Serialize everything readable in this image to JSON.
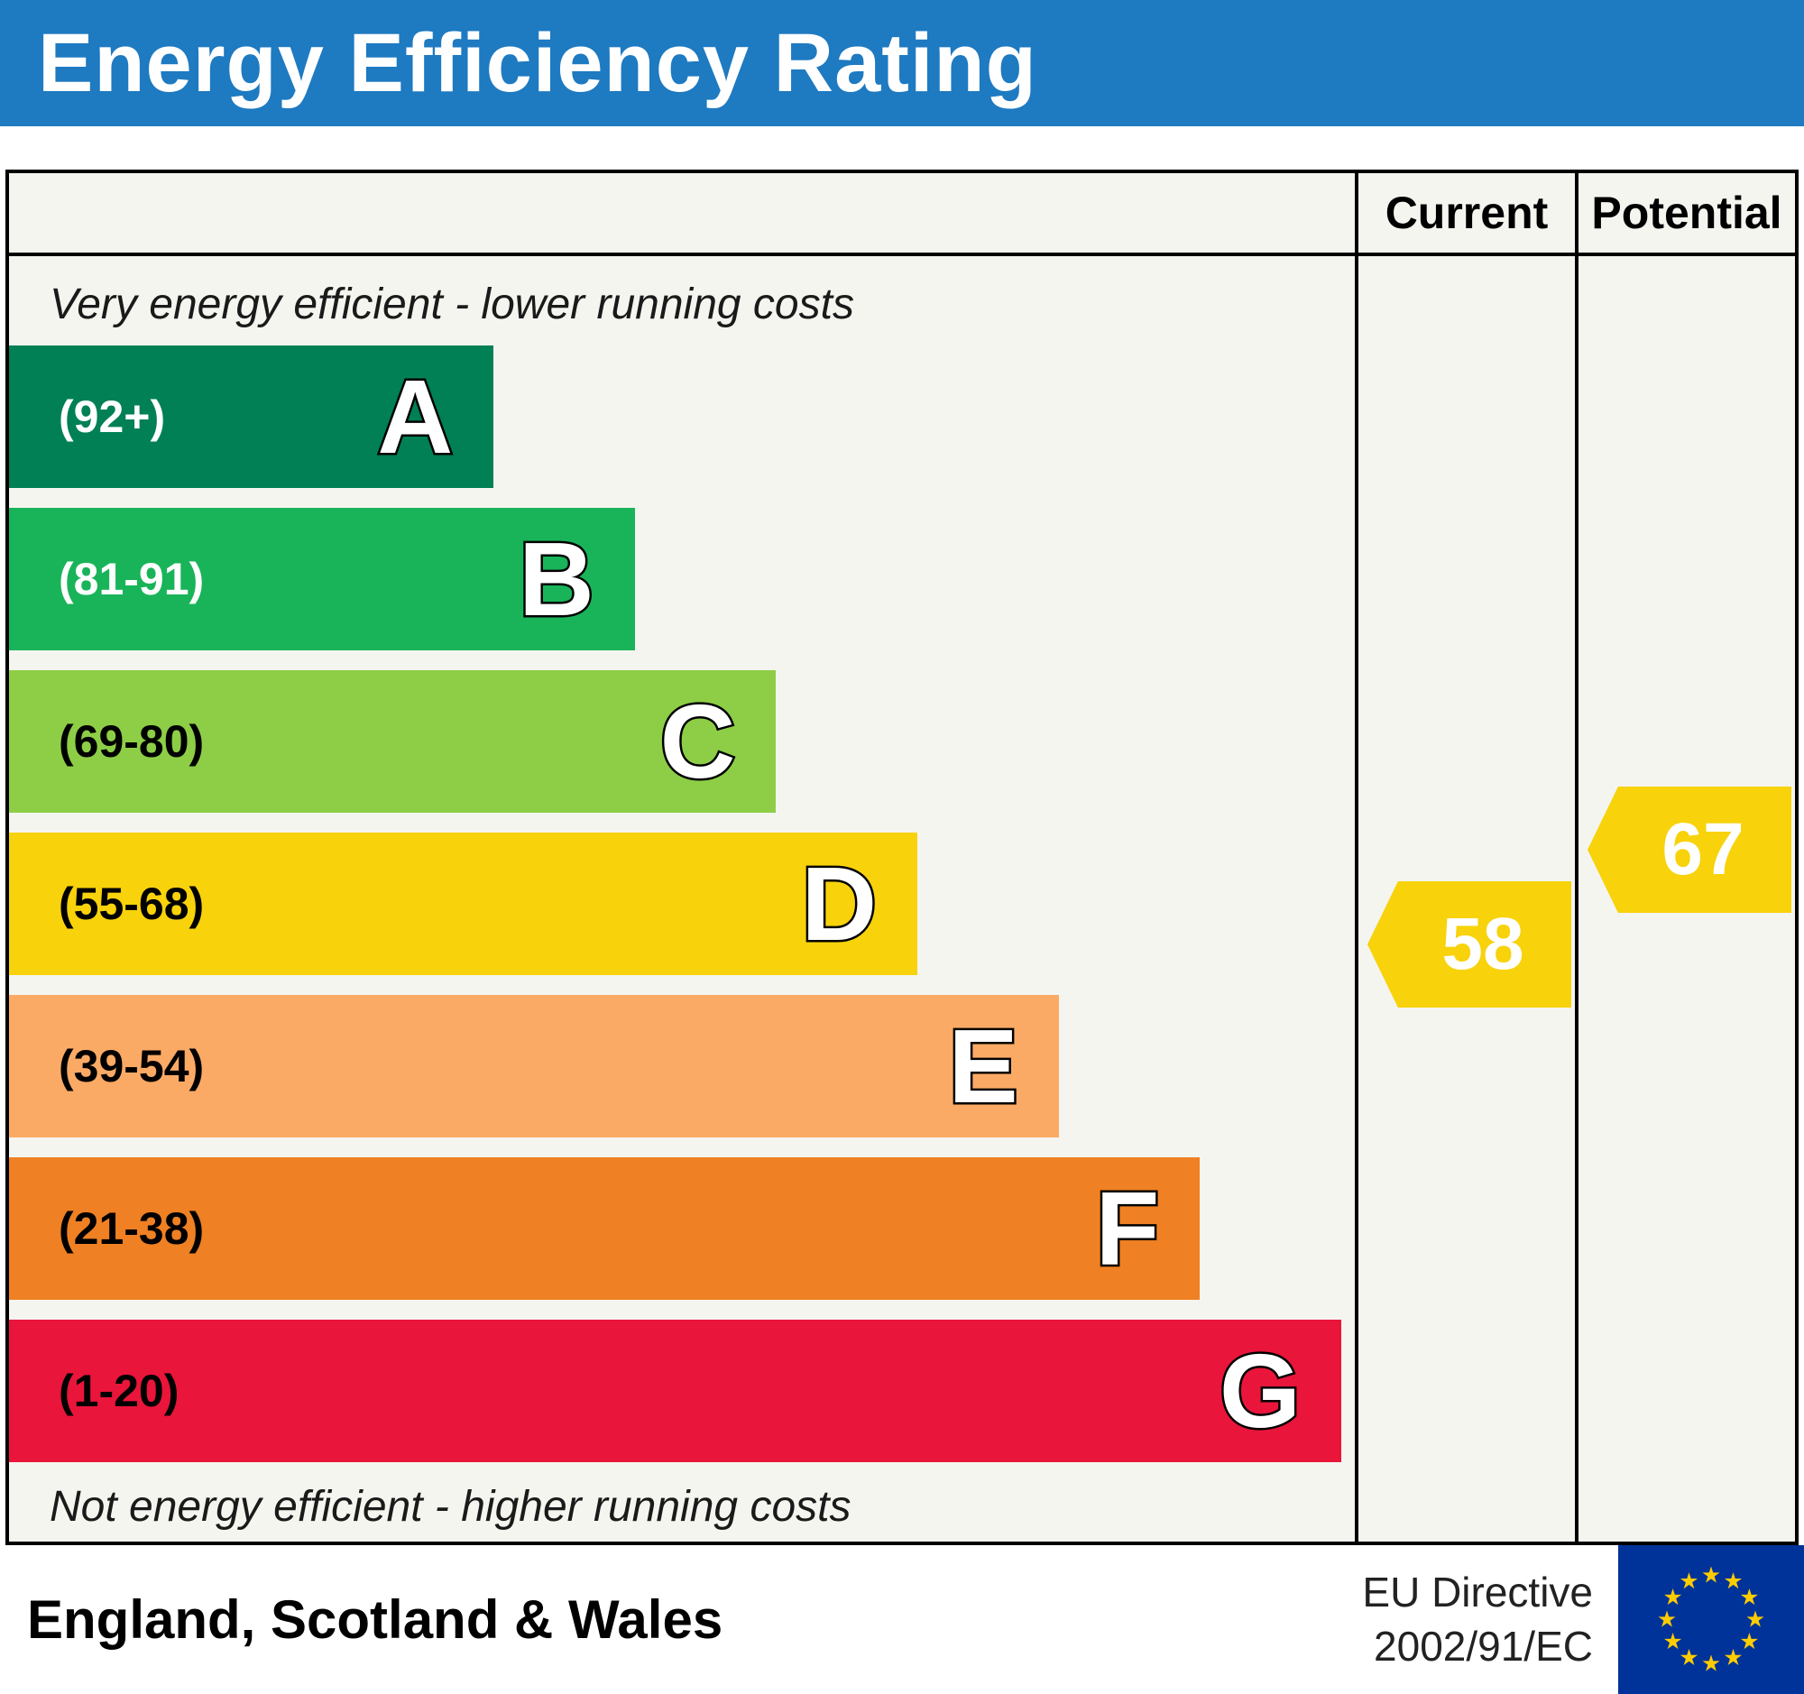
{
  "title": "Energy Efficiency Rating",
  "table": {
    "current_header": "Current",
    "potential_header": "Potential"
  },
  "notes": {
    "top": "Very energy efficient - lower running costs",
    "bottom": "Not energy efficient - higher running costs"
  },
  "bands": [
    {
      "letter": "A",
      "range": "(92+)",
      "color": "#008054",
      "range_color": "#ffffff",
      "width_pct": 36
    },
    {
      "letter": "B",
      "range": "(81-91)",
      "color": "#19b459",
      "range_color": "#ffffff",
      "width_pct": 46.5
    },
    {
      "letter": "C",
      "range": "(69-80)",
      "color": "#8dce46",
      "range_color": "#000000",
      "width_pct": 57
    },
    {
      "letter": "D",
      "range": "(55-68)",
      "color": "#f8d20b",
      "range_color": "#000000",
      "width_pct": 67.5
    },
    {
      "letter": "E",
      "range": "(39-54)",
      "color": "#fbaa65",
      "range_color": "#000000",
      "width_pct": 78
    },
    {
      "letter": "F",
      "range": "(21-38)",
      "color": "#ef8023",
      "range_color": "#000000",
      "width_pct": 88.5
    },
    {
      "letter": "G",
      "range": "(1-20)",
      "color": "#e9153b",
      "range_color": "#000000",
      "width_pct": 99
    }
  ],
  "current": {
    "label": "Current",
    "value": "58",
    "color": "#f8d20b"
  },
  "potential": {
    "label": "Potential",
    "value": "67",
    "color": "#f8d20b"
  },
  "footer": {
    "region": "England, Scotland & Wales",
    "directive_line1": "EU Directive",
    "directive_line2": "2002/91/EC"
  },
  "colors": {
    "banner": "#1e7ac1",
    "border": "#000000",
    "chart_background": "#f5f5f0"
  },
  "flag": {
    "name": "eu-flag",
    "background": "#003399",
    "stars": "#ffcc00"
  },
  "chart_data": {
    "type": "bar",
    "title": "Energy Efficiency Rating",
    "categories": [
      "A",
      "B",
      "C",
      "D",
      "E",
      "F",
      "G"
    ],
    "band_ranges": [
      "(92+)",
      "(81-91)",
      "(69-80)",
      "(55-68)",
      "(39-54)",
      "(21-38)",
      "(1-20)"
    ],
    "band_colors": [
      "#008054",
      "#19b459",
      "#8dce46",
      "#f8d20b",
      "#fbaa65",
      "#ef8023",
      "#e9153b"
    ],
    "bar_relative_widths": [
      36,
      46.5,
      57,
      67.5,
      78,
      88.5,
      99
    ],
    "series": [
      {
        "name": "Current",
        "value": 58,
        "band": "D",
        "marker_color": "#f8d20b"
      },
      {
        "name": "Potential",
        "value": 67,
        "band": "D",
        "marker_color": "#f8d20b"
      }
    ],
    "top_label": "Very energy efficient - lower running costs",
    "bottom_label": "Not energy efficient - higher running costs",
    "region": "England, Scotland & Wales",
    "directive": "EU Directive 2002/91/EC",
    "legend_position": "none",
    "grid": false
  }
}
